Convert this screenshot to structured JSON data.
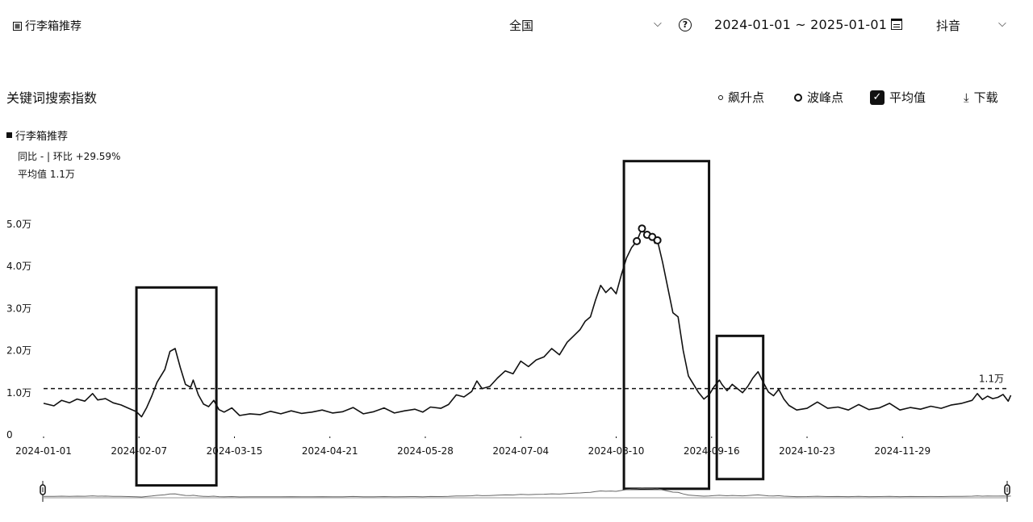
{
  "toolbar": {
    "keyword": "行李箱推荐",
    "region": "全国",
    "date_range": "2024-01-01 ~ 2025-01-01",
    "platform": "抖音",
    "help_glyph": "?"
  },
  "panel": {
    "title": "关键词搜索指数",
    "controls": {
      "surge_label": "飙升点",
      "peak_label": "波峰点",
      "average_label": "平均值",
      "download_label": "下载"
    }
  },
  "summary": {
    "series_name": "行李箱推荐",
    "yoy_mom": "同比 - | 环比 +29.59%",
    "average": "平均值 1.1万"
  },
  "chart_data": {
    "type": "line",
    "title": "关键词搜索指数",
    "series_name": "行李箱推荐",
    "start_date": "2024-01-01",
    "end_date": "2024-12-31",
    "x_tick_labels": [
      "2024-01-01",
      "2024-02-07",
      "2024-03-15",
      "2024-04-21",
      "2024-05-28",
      "2024-07-04",
      "2024-08-10",
      "2024-09-16",
      "2024-10-23",
      "2024-11-29"
    ],
    "x_tick_days": [
      0,
      37,
      74,
      111,
      148,
      185,
      222,
      259,
      296,
      333
    ],
    "y_tick_labels": [
      "0",
      "1.0万",
      "2.0万",
      "3.0万",
      "4.0万",
      "5.0万"
    ],
    "y_tick_values": [
      0,
      10000,
      20000,
      30000,
      40000,
      50000
    ],
    "ylim": [
      0,
      50000
    ],
    "average": 11000,
    "average_label": "1.1万",
    "series": [
      {
        "name": "行李箱推荐",
        "points": [
          [
            0,
            7500
          ],
          [
            4,
            6900
          ],
          [
            7,
            8200
          ],
          [
            10,
            7600
          ],
          [
            13,
            8500
          ],
          [
            16,
            8000
          ],
          [
            19,
            9800
          ],
          [
            21,
            8300
          ],
          [
            24,
            8600
          ],
          [
            27,
            7600
          ],
          [
            30,
            7100
          ],
          [
            33,
            6300
          ],
          [
            36,
            5500
          ],
          [
            38,
            4300
          ],
          [
            40,
            6500
          ],
          [
            42,
            9300
          ],
          [
            44,
            12500
          ],
          [
            47,
            15500
          ],
          [
            49,
            19800
          ],
          [
            51,
            20500
          ],
          [
            53,
            16000
          ],
          [
            55,
            12000
          ],
          [
            57,
            11300
          ],
          [
            58,
            13000
          ],
          [
            60,
            9500
          ],
          [
            62,
            7300
          ],
          [
            64,
            6700
          ],
          [
            66,
            8200
          ],
          [
            68,
            6000
          ],
          [
            70,
            5400
          ],
          [
            73,
            6400
          ],
          [
            76,
            4600
          ],
          [
            80,
            5000
          ],
          [
            84,
            4800
          ],
          [
            88,
            5600
          ],
          [
            92,
            5000
          ],
          [
            96,
            5700
          ],
          [
            100,
            5100
          ],
          [
            104,
            5400
          ],
          [
            108,
            5900
          ],
          [
            112,
            5200
          ],
          [
            116,
            5500
          ],
          [
            120,
            6500
          ],
          [
            124,
            5000
          ],
          [
            128,
            5500
          ],
          [
            132,
            6400
          ],
          [
            136,
            5200
          ],
          [
            140,
            5700
          ],
          [
            144,
            6100
          ],
          [
            147,
            5400
          ],
          [
            150,
            6600
          ],
          [
            154,
            6300
          ],
          [
            157,
            7200
          ],
          [
            160,
            9500
          ],
          [
            163,
            9000
          ],
          [
            166,
            10300
          ],
          [
            168,
            12800
          ],
          [
            170,
            11000
          ],
          [
            173,
            11500
          ],
          [
            176,
            13500
          ],
          [
            179,
            15200
          ],
          [
            182,
            14500
          ],
          [
            185,
            17500
          ],
          [
            188,
            16200
          ],
          [
            191,
            17800
          ],
          [
            194,
            18500
          ],
          [
            197,
            20500
          ],
          [
            200,
            19000
          ],
          [
            203,
            22000
          ],
          [
            206,
            23800
          ],
          [
            208,
            25000
          ],
          [
            210,
            27000
          ],
          [
            212,
            28000
          ],
          [
            214,
            32000
          ],
          [
            216,
            35500
          ],
          [
            218,
            33800
          ],
          [
            220,
            35000
          ],
          [
            222,
            33500
          ],
          [
            224,
            38000
          ],
          [
            226,
            42000
          ],
          [
            228,
            44500
          ],
          [
            230,
            46000
          ],
          [
            232,
            49000
          ],
          [
            233,
            48000
          ],
          [
            234,
            47500
          ],
          [
            236,
            47000
          ],
          [
            237,
            45500
          ],
          [
            238,
            46200
          ],
          [
            240,
            41000
          ],
          [
            242,
            35000
          ],
          [
            244,
            29000
          ],
          [
            246,
            28000
          ],
          [
            248,
            20000
          ],
          [
            250,
            14000
          ],
          [
            252,
            12000
          ],
          [
            254,
            10000
          ],
          [
            256,
            8500
          ],
          [
            258,
            9500
          ],
          [
            260,
            11500
          ],
          [
            262,
            13000
          ],
          [
            263,
            12000
          ],
          [
            265,
            10500
          ],
          [
            267,
            12000
          ],
          [
            269,
            11000
          ],
          [
            271,
            10000
          ],
          [
            273,
            11500
          ],
          [
            275,
            13500
          ],
          [
            277,
            15000
          ],
          [
            279,
            12500
          ],
          [
            281,
            10200
          ],
          [
            283,
            9300
          ],
          [
            285,
            10800
          ],
          [
            287,
            8500
          ],
          [
            289,
            7000
          ],
          [
            292,
            5900
          ],
          [
            296,
            6300
          ],
          [
            300,
            7800
          ],
          [
            304,
            6300
          ],
          [
            308,
            6600
          ],
          [
            312,
            5900
          ],
          [
            316,
            7200
          ],
          [
            320,
            6000
          ],
          [
            324,
            6400
          ],
          [
            328,
            7500
          ],
          [
            332,
            5900
          ],
          [
            336,
            6500
          ],
          [
            340,
            6100
          ],
          [
            344,
            6800
          ],
          [
            348,
            6300
          ],
          [
            352,
            7100
          ],
          [
            356,
            7500
          ],
          [
            360,
            8200
          ],
          [
            362,
            9800
          ],
          [
            364,
            8400
          ],
          [
            366,
            9200
          ],
          [
            368,
            8600
          ],
          [
            370,
            8900
          ],
          [
            372,
            9600
          ],
          [
            374,
            8000
          ],
          [
            375,
            9400
          ]
        ]
      }
    ],
    "peak_points": [
      [
        230,
        46000
      ],
      [
        232,
        49000
      ],
      [
        234,
        47500
      ],
      [
        236,
        47000
      ],
      [
        238,
        46200
      ]
    ],
    "highlight_boxes": [
      {
        "from_day": 36,
        "to_day": 67,
        "min": -12000,
        "max": 35000
      },
      {
        "from_day": 225,
        "to_day": 258,
        "min": -12800,
        "max": 65000
      },
      {
        "from_day": 261,
        "to_day": 279,
        "min": -10500,
        "max": 23500
      }
    ]
  }
}
